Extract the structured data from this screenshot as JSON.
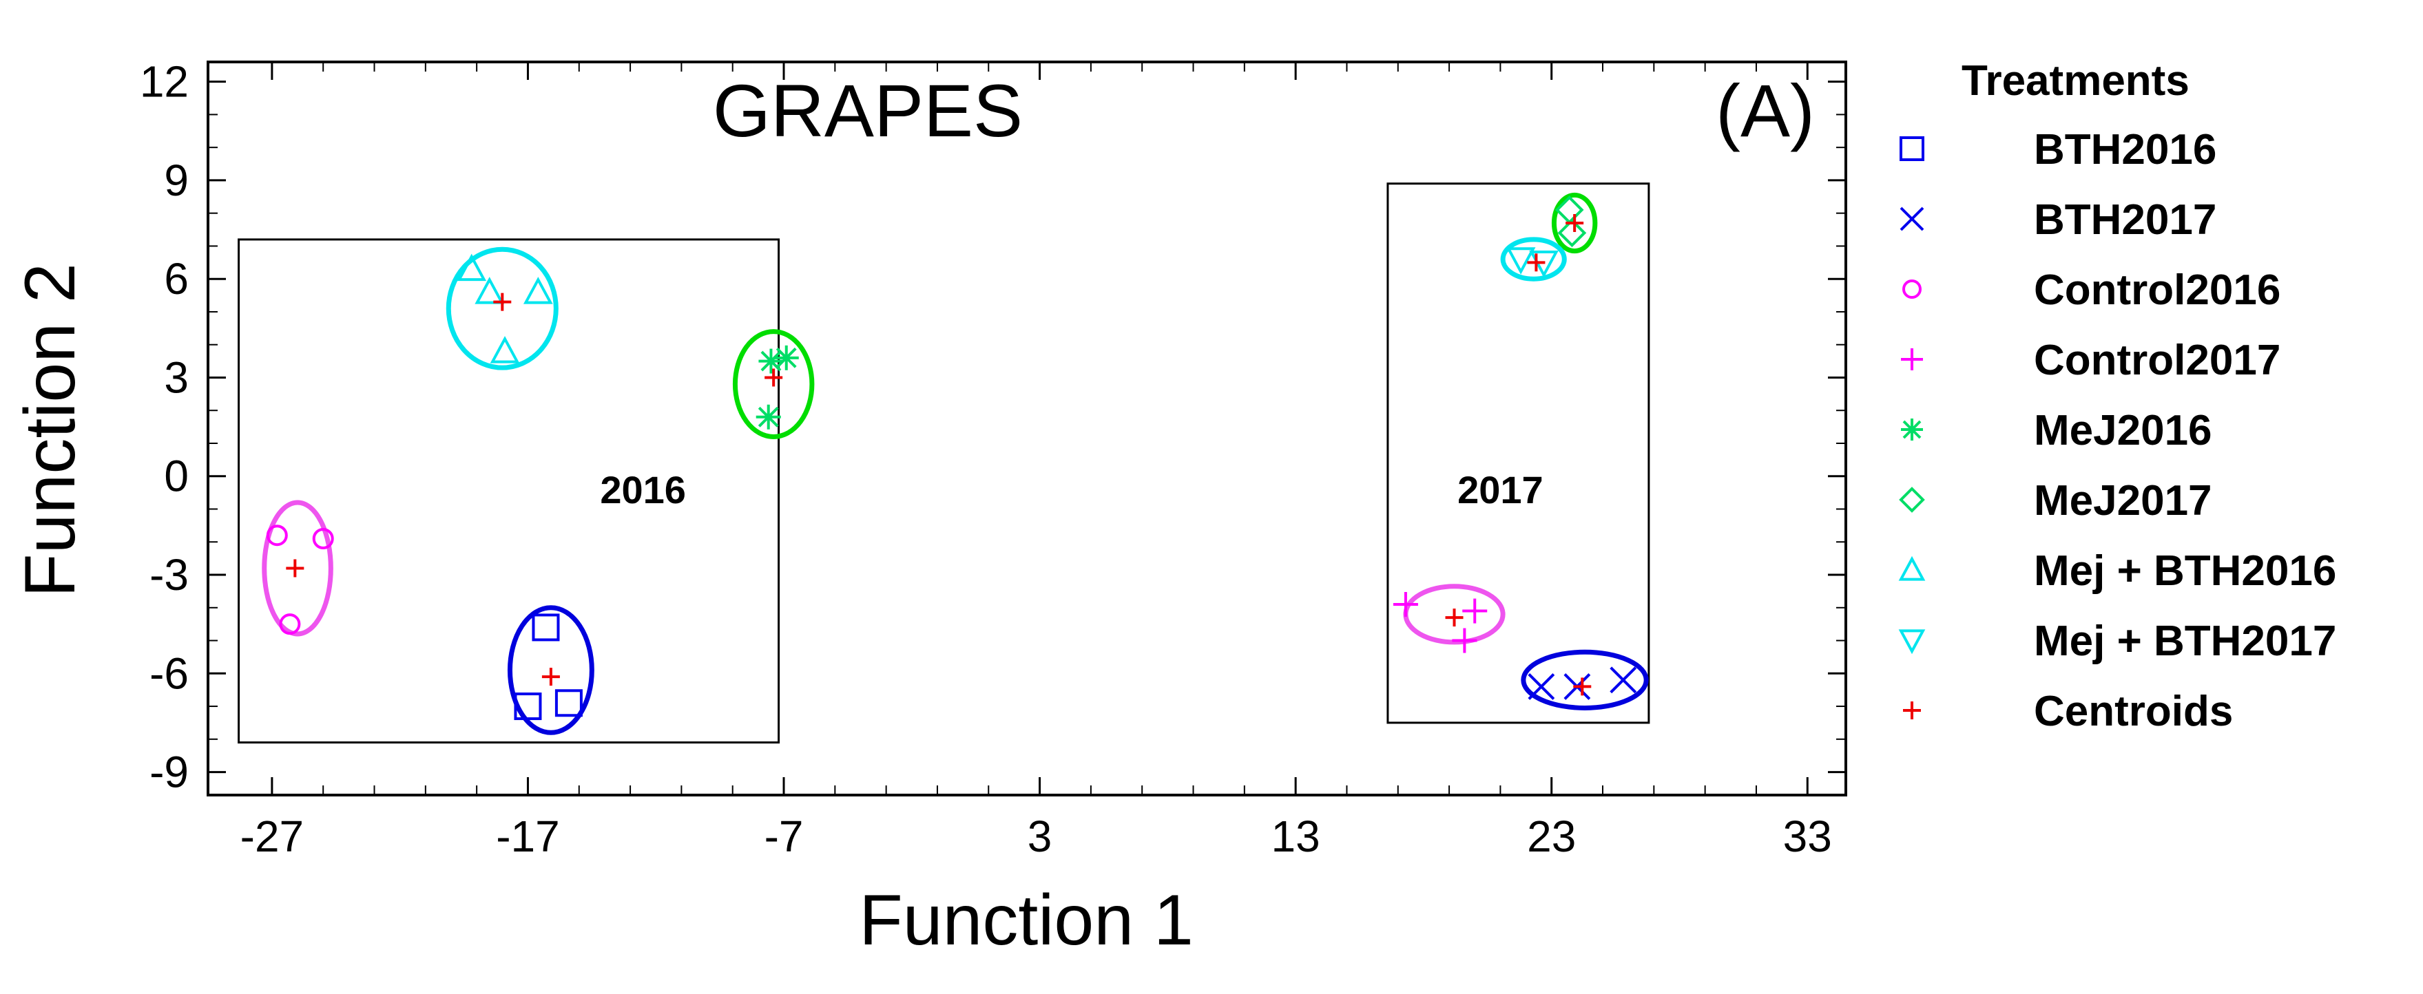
{
  "chart_data": {
    "type": "scatter",
    "title": "GRAPES",
    "panel_tag": "(A)",
    "xlabel": "Function 1",
    "ylabel": "Function 2",
    "xlim": [
      -29.5,
      34.5
    ],
    "ylim": [
      -9.7,
      12.6
    ],
    "x_ticks": [
      -27,
      -17,
      -7,
      3,
      13,
      23,
      33
    ],
    "y_ticks": [
      12,
      9,
      6,
      3,
      0,
      -3,
      -6,
      -9
    ],
    "x_minor_step": 2,
    "y_minor_step": 1,
    "grid": false,
    "legend": {
      "title": "Treatments",
      "position": "right",
      "entries": [
        {
          "label": "BTH2016",
          "series": "BTH2016"
        },
        {
          "label": "BTH2017",
          "series": "BTH2017"
        },
        {
          "label": "Control2016",
          "series": "Control2016"
        },
        {
          "label": "Control2017",
          "series": "Control2017"
        },
        {
          "label": "MeJ2016",
          "series": "MeJ2016"
        },
        {
          "label": "MeJ2017",
          "series": "MeJ2017"
        },
        {
          "label": "Mej + BTH2016",
          "series": "MejBTH2016"
        },
        {
          "label": "Mej + BTH2017",
          "series": "MejBTH2017"
        },
        {
          "label": "Centroids",
          "series": "Centroids"
        }
      ]
    },
    "series": [
      {
        "name": "BTH2016",
        "marker": "square",
        "color": "#0000ee",
        "points": [
          [
            -16.3,
            -4.6
          ],
          [
            -17.0,
            -7.0
          ],
          [
            -15.4,
            -6.9
          ]
        ]
      },
      {
        "name": "BTH2017",
        "marker": "x",
        "color": "#0000ee",
        "points": [
          [
            22.6,
            -6.4
          ],
          [
            24.0,
            -6.4
          ],
          [
            25.8,
            -6.2
          ]
        ]
      },
      {
        "name": "Control2016",
        "marker": "circle",
        "color": "#ff00ff",
        "points": [
          [
            -26.8,
            -1.8
          ],
          [
            -25.0,
            -1.9
          ],
          [
            -26.3,
            -4.5
          ]
        ]
      },
      {
        "name": "Control2017",
        "marker": "plus",
        "color": "#ff00ff",
        "points": [
          [
            17.3,
            -3.9
          ],
          [
            19.6,
            -5.0
          ],
          [
            20.0,
            -4.1
          ]
        ]
      },
      {
        "name": "MeJ2016",
        "marker": "asterisk",
        "color": "#00dd66",
        "points": [
          [
            -7.5,
            3.5
          ],
          [
            -6.9,
            3.6
          ],
          [
            -7.6,
            1.8
          ]
        ]
      },
      {
        "name": "MeJ2017",
        "marker": "diamond",
        "color": "#00dd66",
        "points": [
          [
            23.7,
            8.1
          ],
          [
            23.8,
            7.4
          ]
        ]
      },
      {
        "name": "MejBTH2016",
        "marker": "triangle-up",
        "color": "#00e5ee",
        "points": [
          [
            -19.2,
            6.3
          ],
          [
            -18.5,
            5.6
          ],
          [
            -16.6,
            5.6
          ],
          [
            -17.9,
            3.8
          ]
        ]
      },
      {
        "name": "MejBTH2017",
        "marker": "triangle-down",
        "color": "#00e5ee",
        "points": [
          [
            21.8,
            6.6
          ],
          [
            22.7,
            6.5
          ]
        ]
      },
      {
        "name": "Centroids",
        "marker": "plus",
        "color": "#ee0000",
        "points": [
          [
            -18.0,
            5.3
          ],
          [
            -7.4,
            3.0
          ],
          [
            -26.1,
            -2.8
          ],
          [
            -16.1,
            -6.1
          ],
          [
            23.9,
            7.7
          ],
          [
            22.4,
            6.5
          ],
          [
            19.2,
            -4.3
          ],
          [
            24.2,
            -6.4
          ]
        ]
      }
    ],
    "ellipses": [
      {
        "name": "mejbth2016-ellipse",
        "color": "#00e5ee",
        "cx": -18.0,
        "cy": 5.1,
        "rx": 2.1,
        "ry": 1.8
      },
      {
        "name": "mej2016-ellipse",
        "color": "#00dd00",
        "cx": -7.4,
        "cy": 2.8,
        "rx": 1.5,
        "ry": 1.6
      },
      {
        "name": "control2016-ellipse",
        "color": "#ee55ee",
        "cx": -26.0,
        "cy": -2.8,
        "rx": 1.3,
        "ry": 2.0
      },
      {
        "name": "bth2016-ellipse",
        "color": "#0000dd",
        "cx": -16.1,
        "cy": -5.9,
        "rx": 1.6,
        "ry": 1.9
      },
      {
        "name": "mej2017-ellipse",
        "color": "#00dd00",
        "cx": 23.9,
        "cy": 7.7,
        "rx": 0.8,
        "ry": 0.85
      },
      {
        "name": "mejbth2017-ellipse",
        "color": "#00e5ee",
        "cx": 22.3,
        "cy": 6.6,
        "rx": 1.2,
        "ry": 0.6
      },
      {
        "name": "control2017-ellipse",
        "color": "#ee55ee",
        "cx": 19.2,
        "cy": -4.2,
        "rx": 1.9,
        "ry": 0.85
      },
      {
        "name": "bth2017-ellipse",
        "color": "#0000dd",
        "cx": 24.3,
        "cy": -6.2,
        "rx": 2.4,
        "ry": 0.85
      }
    ],
    "groups": [
      {
        "label": "2016",
        "x_range": [
          -28.3,
          -7.2
        ],
        "y_range": [
          -8.1,
          7.2
        ],
        "label_x": -12.5,
        "label_y": -0.4
      },
      {
        "label": "2017",
        "x_range": [
          16.6,
          26.8
        ],
        "y_range": [
          -7.5,
          8.9
        ],
        "label_x": 21.0,
        "label_y": -0.4
      }
    ]
  }
}
